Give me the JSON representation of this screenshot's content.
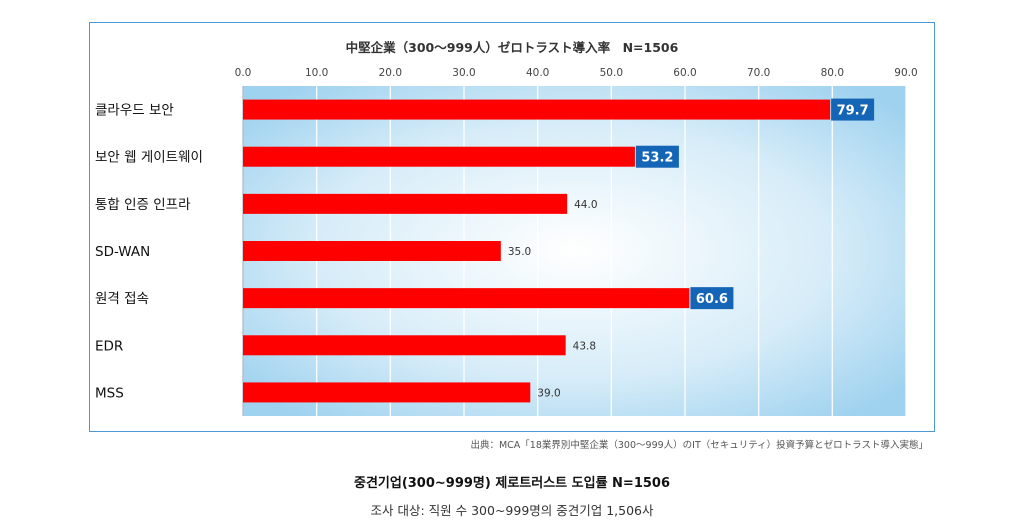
{
  "chart_data": {
    "type": "bar",
    "orientation": "horizontal",
    "title": "中堅企業（300～999人）ゼロトラスト導入率　N=1506",
    "categories": [
      "클라우드 보안",
      "보안 웹 게이트웨이",
      "통합 인증 인프라",
      "SD-WAN",
      "원격 접속",
      "EDR",
      "MSS"
    ],
    "values": [
      79.7,
      53.2,
      44.0,
      35.0,
      60.6,
      43.8,
      39.0
    ],
    "highlighted": [
      true,
      true,
      false,
      false,
      true,
      false,
      false
    ],
    "xlim": [
      0,
      90
    ],
    "ticks": [
      "0.0",
      "10.0",
      "20.0",
      "30.0",
      "40.0",
      "50.0",
      "60.0",
      "70.0",
      "80.0",
      "90.0"
    ],
    "tick_values": [
      0,
      10,
      20,
      30,
      40,
      50,
      60,
      70,
      80,
      90
    ],
    "xlabel": "",
    "ylabel": "",
    "grid": true,
    "colors": {
      "bar": "#ff0000",
      "label_box": "#1565b7",
      "plot_bg_center": "#ffffff",
      "plot_bg_edge": "#9fd2ef",
      "border": "#4a98d6"
    }
  },
  "source_text": "出典：MCA「18業界別中堅企業（300～999人）のIT（セキュリティ）投資予算とゼロトラスト導入実態」",
  "caption": {
    "title": "중견기업(300~999명) 제로트러스트 도입률 N=1506",
    "subtitle": "조사 대상: 직원 수 300~999명의 중견기업 1,506사"
  }
}
